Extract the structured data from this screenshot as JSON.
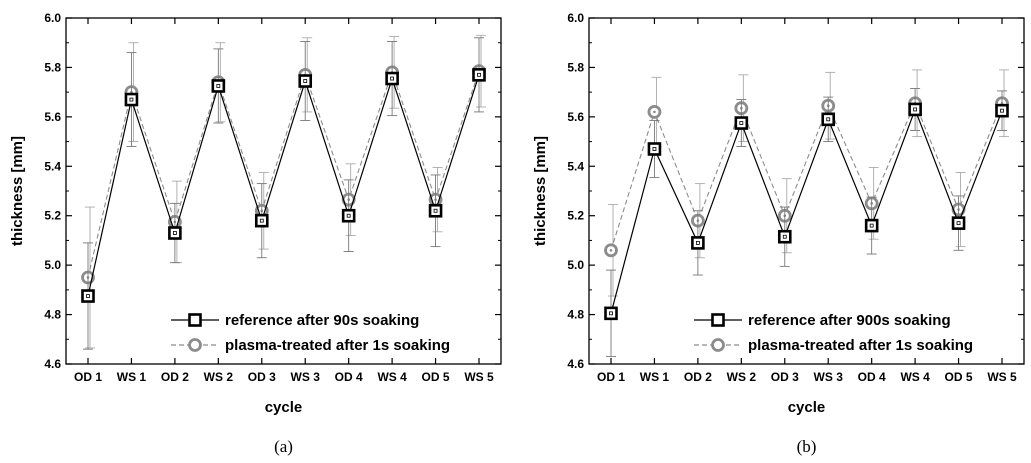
{
  "chart_data": [
    {
      "type": "line",
      "panel_label": "(a)",
      "categories": [
        "OD 1",
        "WS 1",
        "OD 2",
        "WS 2",
        "OD 3",
        "WS 3",
        "OD 4",
        "WS 4",
        "OD 5",
        "WS 5"
      ],
      "xlabel": "cycle",
      "ylabel": "thickness [mm]",
      "ylim": [
        4.6,
        6.0
      ],
      "yticks": [
        4.6,
        4.8,
        5.0,
        5.2,
        5.4,
        5.6,
        5.8,
        6.0
      ],
      "grid": false,
      "legend_position": "bottom-right",
      "series": [
        {
          "name": "reference after 90s soaking",
          "color": "#000000",
          "style": "solid",
          "marker": "square",
          "values": [
            4.875,
            5.67,
            5.13,
            5.725,
            5.18,
            5.745,
            5.2,
            5.755,
            5.22,
            5.77
          ],
          "errors": [
            0.215,
            0.19,
            0.12,
            0.15,
            0.15,
            0.16,
            0.145,
            0.15,
            0.145,
            0.15
          ]
        },
        {
          "name": "plasma-treated after 1s soaking",
          "color": "#8c8c8c",
          "style": "dashed",
          "marker": "circle",
          "values": [
            4.95,
            5.7,
            5.175,
            5.74,
            5.22,
            5.77,
            5.265,
            5.78,
            5.265,
            5.785
          ],
          "errors": [
            0.285,
            0.2,
            0.165,
            0.16,
            0.155,
            0.15,
            0.145,
            0.145,
            0.13,
            0.145
          ]
        }
      ]
    },
    {
      "type": "line",
      "panel_label": "(b)",
      "categories": [
        "OD 1",
        "WS 1",
        "OD 2",
        "WS 2",
        "OD 3",
        "WS 3",
        "OD 4",
        "WS 4",
        "OD 5",
        "WS 5"
      ],
      "xlabel": "cycle",
      "ylabel": "thickness [mm]",
      "ylim": [
        4.6,
        6.0
      ],
      "yticks": [
        4.6,
        4.8,
        5.0,
        5.2,
        5.4,
        5.6,
        5.8,
        6.0
      ],
      "grid": false,
      "legend_position": "bottom-right",
      "series": [
        {
          "name": "reference after 900s soaking",
          "color": "#000000",
          "style": "solid",
          "marker": "square",
          "values": [
            4.805,
            5.47,
            5.09,
            5.575,
            5.115,
            5.59,
            5.16,
            5.63,
            5.17,
            5.625
          ],
          "errors": [
            0.175,
            0.115,
            0.13,
            0.095,
            0.12,
            0.09,
            0.115,
            0.085,
            0.11,
            0.08
          ]
        },
        {
          "name": "plasma-treated after 1s soaking",
          "color": "#8c8c8c",
          "style": "dashed",
          "marker": "circle",
          "values": [
            5.06,
            5.62,
            5.18,
            5.635,
            5.2,
            5.645,
            5.25,
            5.655,
            5.225,
            5.655
          ],
          "errors": [
            0.185,
            0.14,
            0.15,
            0.135,
            0.15,
            0.135,
            0.145,
            0.135,
            0.15,
            0.135
          ]
        }
      ]
    }
  ]
}
